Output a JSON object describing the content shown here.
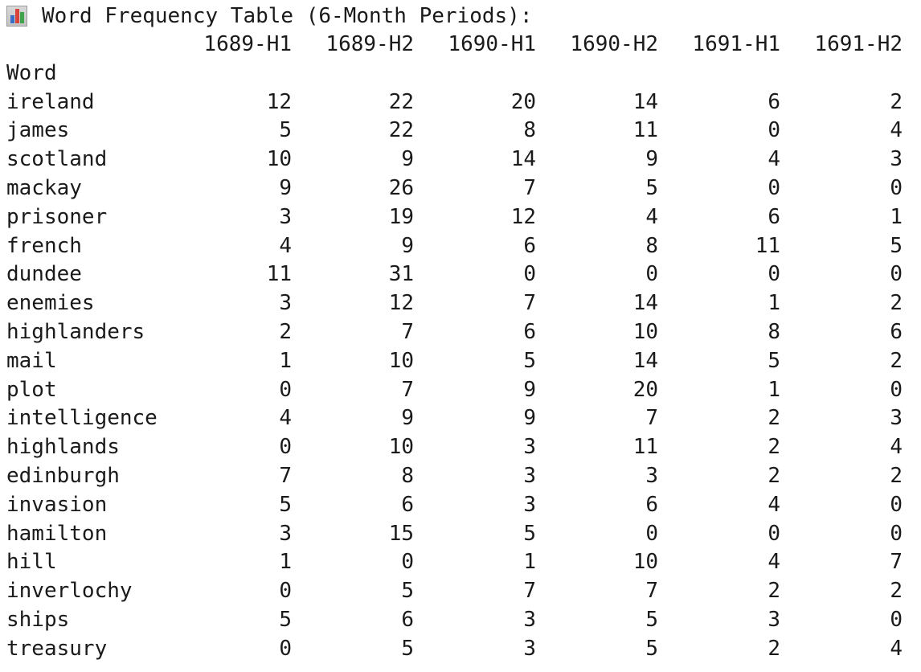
{
  "title": "Word Frequency Table (6-Month Periods):",
  "title_icon": "bar-chart-icon",
  "index_label": "Word",
  "columns": [
    "1689-H1",
    "1689-H2",
    "1690-H1",
    "1690-H2",
    "1691-H1",
    "1691-H2"
  ],
  "rows": [
    {
      "word": "ireland",
      "values": [
        "12",
        "22",
        "20",
        "14",
        "6",
        "2"
      ]
    },
    {
      "word": "james",
      "values": [
        "5",
        "22",
        "8",
        "11",
        "0",
        "4"
      ]
    },
    {
      "word": "scotland",
      "values": [
        "10",
        "9",
        "14",
        "9",
        "4",
        "3"
      ]
    },
    {
      "word": "mackay",
      "values": [
        "9",
        "26",
        "7",
        "5",
        "0",
        "0"
      ]
    },
    {
      "word": "prisoner",
      "values": [
        "3",
        "19",
        "12",
        "4",
        "6",
        "1"
      ]
    },
    {
      "word": "french",
      "values": [
        "4",
        "9",
        "6",
        "8",
        "11",
        "5"
      ]
    },
    {
      "word": "dundee",
      "values": [
        "11",
        "31",
        "0",
        "0",
        "0",
        "0"
      ]
    },
    {
      "word": "enemies",
      "values": [
        "3",
        "12",
        "7",
        "14",
        "1",
        "2"
      ]
    },
    {
      "word": "highlanders",
      "values": [
        "2",
        "7",
        "6",
        "10",
        "8",
        "6"
      ]
    },
    {
      "word": "mail",
      "values": [
        "1",
        "10",
        "5",
        "14",
        "5",
        "2"
      ]
    },
    {
      "word": "plot",
      "values": [
        "0",
        "7",
        "9",
        "20",
        "1",
        "0"
      ]
    },
    {
      "word": "intelligence",
      "values": [
        "4",
        "9",
        "9",
        "7",
        "2",
        "3"
      ]
    },
    {
      "word": "highlands",
      "values": [
        "0",
        "10",
        "3",
        "11",
        "2",
        "4"
      ]
    },
    {
      "word": "edinburgh",
      "values": [
        "7",
        "8",
        "3",
        "3",
        "2",
        "2"
      ]
    },
    {
      "word": "invasion",
      "values": [
        "5",
        "6",
        "3",
        "6",
        "4",
        "0"
      ]
    },
    {
      "word": "hamilton",
      "values": [
        "3",
        "15",
        "5",
        "0",
        "0",
        "0"
      ]
    },
    {
      "word": "hill",
      "values": [
        "1",
        "0",
        "1",
        "10",
        "4",
        "7"
      ]
    },
    {
      "word": "inverlochy",
      "values": [
        "0",
        "5",
        "7",
        "7",
        "2",
        "2"
      ]
    },
    {
      "word": "ships",
      "values": [
        "5",
        "6",
        "3",
        "5",
        "3",
        "0"
      ]
    },
    {
      "word": "treasury",
      "values": [
        "0",
        "5",
        "3",
        "5",
        "2",
        "4"
      ]
    }
  ]
}
